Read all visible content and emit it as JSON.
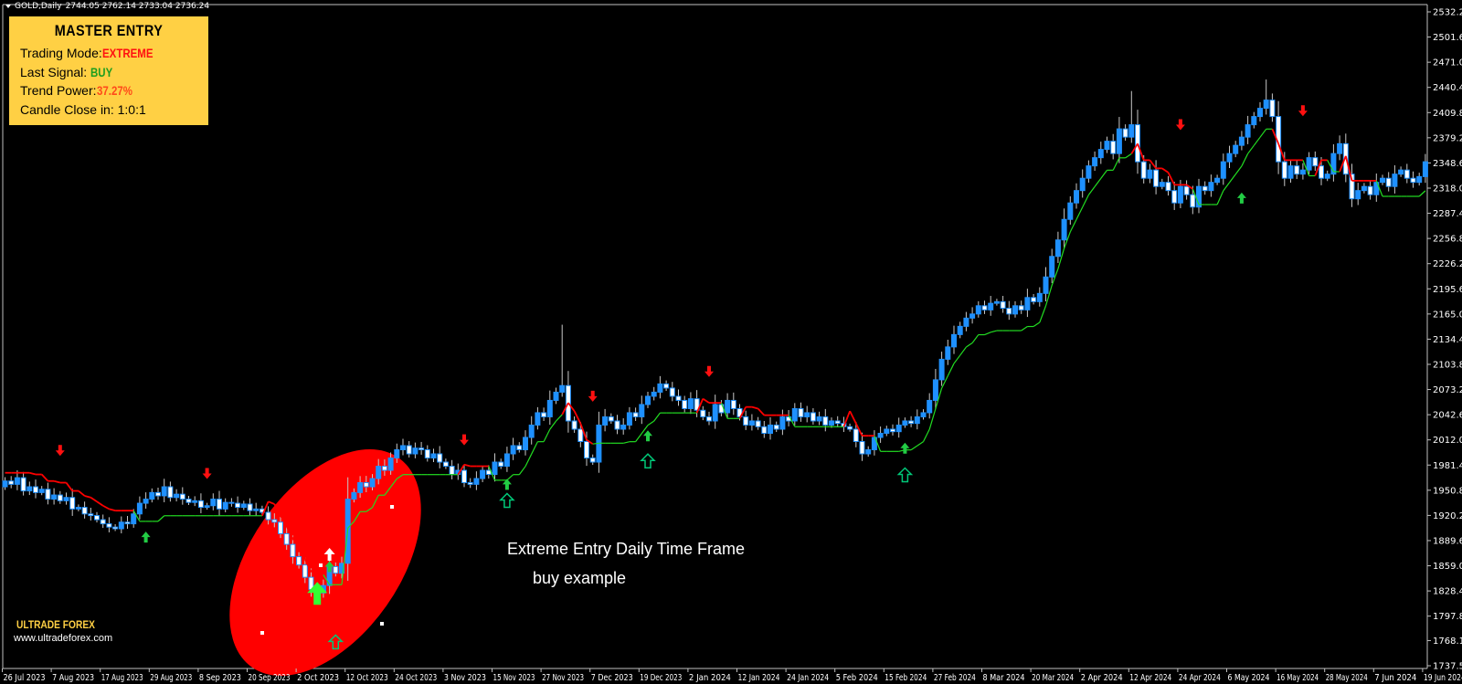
{
  "header": {
    "symbol": "GOLD,Daily",
    "ohlc": "2744.05 2762.14 2733.04 2736.24"
  },
  "panel": {
    "title": "MASTER ENTRY",
    "trading_mode_label": "Trading Mode:",
    "trading_mode": "EXTREME",
    "last_signal_label": "Last Signal:",
    "last_signal": "BUY",
    "trend_power_label": "Trend Power:",
    "trend_power": "37.27%",
    "candle_close_label": "Candle Close in:",
    "candle_close": "1:0:1",
    "colors": {
      "background": "#FFD044",
      "extreme": "#FF1010",
      "buy": "#1E9E1E",
      "power": "#FF4A1A"
    }
  },
  "branding": {
    "name": "ULTRADE FOREX",
    "url": "www.ultradeforex.com"
  },
  "annotation": {
    "line1": "Extreme Entry Daily Time Frame",
    "line2": "buy example",
    "highlight_color": "#FF0000"
  },
  "chart_data": {
    "type": "candlestick",
    "title": "",
    "ylim": [
      1737.5,
      2532.2
    ],
    "y_ticks": [
      "2532.20",
      "2501.60",
      "2471.00",
      "2440.40",
      "2409.80",
      "2379.20",
      "2348.60",
      "2318.00",
      "2287.40",
      "2256.80",
      "2226.20",
      "2195.60",
      "2165.00",
      "2134.40",
      "2103.80",
      "2073.20",
      "2042.60",
      "2012.00",
      "1981.40",
      "1950.80",
      "1920.20",
      "1889.60",
      "1859.00",
      "1828.40",
      "1797.80",
      "1768.10",
      "1737.50"
    ],
    "x_ticks": [
      "26 Jul 2023",
      "7 Aug 2023",
      "17 Aug 2023",
      "29 Aug 2023",
      "8 Sep 2023",
      "20 Sep 2023",
      "2 Oct 2023",
      "12 Oct 2023",
      "24 Oct 2023",
      "3 Nov 2023",
      "15 Nov 2023",
      "27 Nov 2023",
      "7 Dec 2023",
      "19 Dec 2023",
      "2 Jan 2024",
      "12 Jan 2024",
      "24 Jan 2024",
      "5 Feb 2024",
      "15 Feb 2024",
      "27 Feb 2024",
      "8 Mar 2024",
      "20 Mar 2024",
      "2 Apr 2024",
      "12 Apr 2024",
      "24 Apr 2024",
      "6 May 2024",
      "16 May 2024",
      "28 May 2024",
      "7 Jun 2024",
      "19 Jun 2024"
    ],
    "bars_per_x_tick": 8,
    "first_open": 1955,
    "closes": [
      1962,
      1958,
      1966,
      1950,
      1955,
      1948,
      1952,
      1940,
      1945,
      1938,
      1942,
      1928,
      1930,
      1922,
      1920,
      1915,
      1910,
      1906,
      1904,
      1912,
      1910,
      1922,
      1935,
      1940,
      1948,
      1944,
      1955,
      1942,
      1946,
      1940,
      1936,
      1938,
      1930,
      1932,
      1940,
      1928,
      1936,
      1935,
      1930,
      1934,
      1926,
      1928,
      1924,
      1915,
      1912,
      1898,
      1885,
      1870,
      1860,
      1845,
      1830,
      1826,
      1835,
      1858,
      1850,
      1862,
      1940,
      1948,
      1960,
      1955,
      1965,
      1980,
      1975,
      1990,
      2000,
      2005,
      1995,
      2002,
      2000,
      1990,
      1995,
      1985,
      1980,
      1970,
      1975,
      1960,
      1958,
      1965,
      1975,
      1970,
      1985,
      1980,
      1995,
      2005,
      2000,
      2015,
      2030,
      2045,
      2040,
      2060,
      2070,
      2078,
      2035,
      2025,
      2010,
      1990,
      1985,
      2030,
      2040,
      2035,
      2025,
      2030,
      2045,
      2040,
      2055,
      2065,
      2070,
      2080,
      2075,
      2065,
      2060,
      2050,
      2062,
      2048,
      2040,
      2035,
      2055,
      2045,
      2060,
      2050,
      2040,
      2030,
      2035,
      2028,
      2020,
      2030,
      2025,
      2040,
      2035,
      2050,
      2040,
      2045,
      2035,
      2040,
      2030,
      2035,
      2032,
      2028,
      2025,
      2010,
      1995,
      2000,
      2015,
      2020,
      2025,
      2022,
      2030,
      2035,
      2032,
      2040,
      2045,
      2060,
      2085,
      2110,
      2125,
      2140,
      2150,
      2160,
      2165,
      2175,
      2170,
      2178,
      2180,
      2172,
      2165,
      2175,
      2170,
      2185,
      2180,
      2190,
      2210,
      2235,
      2255,
      2280,
      2300,
      2315,
      2330,
      2345,
      2355,
      2365,
      2375,
      2360,
      2390,
      2380,
      2395,
      2350,
      2330,
      2340,
      2320,
      2325,
      2315,
      2300,
      2320,
      2310,
      2295,
      2320,
      2315,
      2325,
      2330,
      2350,
      2360,
      2370,
      2380,
      2395,
      2405,
      2415,
      2425,
      2405,
      2350,
      2330,
      2345,
      2335,
      2340,
      2355,
      2345,
      2330,
      2335,
      2360,
      2372,
      2335,
      2305,
      2315,
      2320,
      2310,
      2325,
      2330,
      2320,
      2335,
      2340,
      2330,
      2325,
      2332,
      2350
    ],
    "notable_highs": {
      "91": 2152,
      "184": 2436,
      "206": 2450
    },
    "signals": [
      {
        "bar": 9,
        "type": "sell",
        "price": 1998
      },
      {
        "bar": 33,
        "type": "sell",
        "price": 1970
      },
      {
        "bar": 75,
        "type": "sell",
        "price": 2011
      },
      {
        "bar": 96,
        "type": "sell",
        "price": 2064
      },
      {
        "bar": 115,
        "type": "sell",
        "price": 2094
      },
      {
        "bar": 192,
        "type": "sell",
        "price": 2394
      },
      {
        "bar": 212,
        "type": "sell",
        "price": 2411
      },
      {
        "bar": 23,
        "type": "buy",
        "price": 1895
      },
      {
        "bar": 53,
        "type": "buy",
        "price": 1859
      },
      {
        "bar": 82,
        "type": "buy",
        "price": 1959
      },
      {
        "bar": 105,
        "type": "buy",
        "price": 2018
      },
      {
        "bar": 147,
        "type": "buy",
        "price": 2003
      },
      {
        "bar": 202,
        "type": "buy",
        "price": 2307
      },
      {
        "bar": 54,
        "type": "buy-hollow",
        "price": 1767
      },
      {
        "bar": 82,
        "type": "buy-hollow",
        "price": 1939
      },
      {
        "bar": 105,
        "type": "buy-hollow",
        "price": 1987
      },
      {
        "bar": 147,
        "type": "buy-hollow",
        "price": 1970
      },
      {
        "bar": 51,
        "type": "buy-extreme",
        "price": 1826
      },
      {
        "bar": 53,
        "type": "entry-white",
        "price": 1874
      }
    ],
    "colors": {
      "bull": "#1E90FF",
      "bear_fill": "#FFFFFF",
      "wick": "#C8C8C8",
      "trend_up": "#22DD22",
      "trend_down": "#FF0000",
      "sell_arrow": "#FF1010",
      "buy_arrow": "#22CC44",
      "hollow_arrow": "#00C878",
      "axis": "#C0C0C0"
    }
  }
}
